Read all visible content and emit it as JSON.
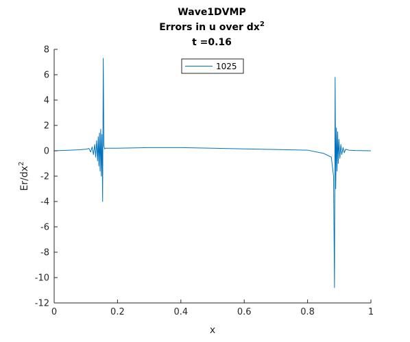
{
  "chart_data": {
    "type": "line",
    "title_lines": [
      "Wave1DVMP",
      "Errors in u over dx",
      "t =0.16"
    ],
    "title_superscript": "2",
    "xlabel": "x",
    "ylabel_base": "Er/dx",
    "ylabel_superscript": "2",
    "xlim": [
      0,
      1
    ],
    "ylim": [
      -12,
      8
    ],
    "x_ticks": [
      0,
      0.2,
      0.4,
      0.6,
      0.8,
      1
    ],
    "x_tick_labels": [
      "0",
      "0.2",
      "0.4",
      "0.6",
      "0.8",
      "1"
    ],
    "y_ticks": [
      -12,
      -10,
      -8,
      -6,
      -4,
      -2,
      0,
      2,
      4,
      6,
      8
    ],
    "y_tick_labels": [
      "-12",
      "-10",
      "-8",
      "-6",
      "-4",
      "-2",
      "0",
      "2",
      "4",
      "6",
      "8"
    ],
    "legend_placement": "top-center",
    "grid": false,
    "series": [
      {
        "name": "1025",
        "color": "#0072BD",
        "x": [
          0.0,
          0.05,
          0.08,
          0.1,
          0.11,
          0.115,
          0.12,
          0.124,
          0.128,
          0.131,
          0.134,
          0.137,
          0.139,
          0.141,
          0.143,
          0.145,
          0.147,
          0.149,
          0.151,
          0.153,
          0.155,
          0.157,
          0.159,
          0.161,
          0.165,
          0.2,
          0.3,
          0.4,
          0.5,
          0.6,
          0.7,
          0.8,
          0.85,
          0.875,
          0.882,
          0.885,
          0.887,
          0.889,
          0.891,
          0.893,
          0.895,
          0.897,
          0.899,
          0.902,
          0.905,
          0.908,
          0.912,
          0.916,
          0.92,
          0.93,
          0.95,
          1.0
        ],
        "y": [
          0.0,
          0.05,
          0.08,
          0.12,
          0.18,
          -0.1,
          0.3,
          -0.3,
          0.5,
          -0.5,
          0.8,
          -0.8,
          1.1,
          -1.2,
          1.4,
          -1.6,
          1.7,
          -2.0,
          1.3,
          -4.0,
          7.3,
          0.4,
          0.15,
          0.2,
          0.2,
          0.2,
          0.25,
          0.25,
          0.2,
          0.15,
          0.1,
          0.05,
          -0.2,
          -0.5,
          -2.0,
          -10.8,
          5.8,
          -3.0,
          1.8,
          -1.6,
          1.5,
          -1.0,
          0.9,
          -0.6,
          0.5,
          -0.3,
          0.25,
          -0.15,
          0.12,
          0.05,
          0.02,
          0.0
        ]
      }
    ]
  }
}
